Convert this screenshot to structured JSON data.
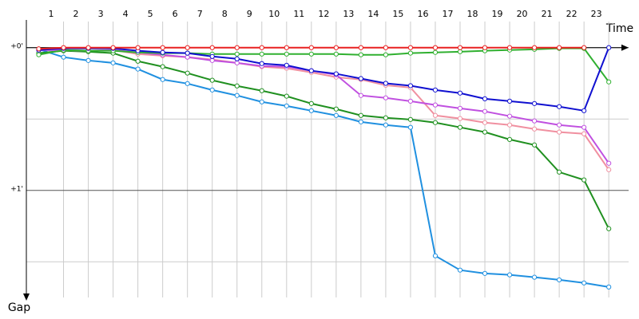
{
  "chart_data": {
    "type": "line",
    "x_label": "Time",
    "y_label": "Gap",
    "x": [
      0,
      1,
      2,
      3,
      4,
      5,
      6,
      7,
      8,
      9,
      10,
      11,
      12,
      13,
      14,
      15,
      16,
      17,
      18,
      19,
      20,
      21,
      22,
      23
    ],
    "xlim": [
      -0.5,
      23.8
    ],
    "xticks": [
      {
        "value": 1,
        "label": "1"
      },
      {
        "value": 2,
        "label": "2"
      },
      {
        "value": 3,
        "label": "3"
      },
      {
        "value": 4,
        "label": "4"
      },
      {
        "value": 5,
        "label": "5"
      },
      {
        "value": 6,
        "label": "6"
      },
      {
        "value": 7,
        "label": "7"
      },
      {
        "value": 8,
        "label": "8"
      },
      {
        "value": 9,
        "label": "9"
      },
      {
        "value": 10,
        "label": "10"
      },
      {
        "value": 11,
        "label": "11"
      },
      {
        "value": 12,
        "label": "12"
      },
      {
        "value": 13,
        "label": "13"
      },
      {
        "value": 14,
        "label": "14"
      },
      {
        "value": 15,
        "label": "15"
      },
      {
        "value": 16,
        "label": "16"
      },
      {
        "value": 17,
        "label": "17"
      },
      {
        "value": 18,
        "label": "18"
      },
      {
        "value": 19,
        "label": "19"
      },
      {
        "value": 20,
        "label": "20"
      },
      {
        "value": 21,
        "label": "21"
      },
      {
        "value": 22,
        "label": "22"
      },
      {
        "value": 23,
        "label": "23"
      }
    ],
    "ylim": [
      -15,
      105
    ],
    "yticks": [
      {
        "value": 0,
        "label": "+0'"
      },
      {
        "value": 60,
        "label": "+1'"
      }
    ],
    "minor_yticks": [
      30,
      90
    ],
    "grid": true,
    "series": [
      {
        "color": "#2090e0",
        "values": [
          0.7,
          4,
          5.4,
          6.4,
          9,
          13.4,
          15.1,
          17.8,
          20.1,
          22.8,
          24.5,
          26.5,
          28.5,
          31.2,
          32.5,
          33.5,
          87.5,
          93.5,
          94.9,
          95.5,
          96.5,
          97.6,
          98.9,
          100.6
        ]
      },
      {
        "color": "#209020",
        "values": [
          2.3,
          1.3,
          1.7,
          2.3,
          5.7,
          8,
          10.7,
          13.7,
          16.1,
          18.1,
          20.4,
          23.5,
          25.8,
          28.5,
          29.5,
          30.2,
          31.5,
          33.5,
          35.5,
          38.6,
          40.9,
          52.3,
          55.6,
          76.1
        ]
      },
      {
        "color": "#f090a0",
        "values": [
          1,
          1,
          1.3,
          1,
          2.7,
          3.4,
          4,
          5,
          6.4,
          8,
          8.7,
          10.4,
          12.4,
          13.4,
          15.8,
          16.8,
          28.5,
          29.8,
          31.5,
          32.5,
          34.2,
          35.5,
          36.2,
          51.3
        ]
      },
      {
        "color": "#c050e0",
        "values": [
          1,
          1,
          1.3,
          1,
          2,
          3,
          4,
          5.4,
          6.4,
          7.7,
          8,
          9.7,
          11.4,
          20.1,
          21.1,
          22.5,
          24.1,
          25.5,
          26.8,
          28.8,
          30.8,
          32.5,
          33.5,
          48.6
        ]
      },
      {
        "color": "#30b030",
        "values": [
          3,
          1,
          1.3,
          1.3,
          2,
          2.3,
          2.3,
          2.7,
          2.7,
          2.7,
          2.7,
          2.7,
          2.7,
          3,
          3,
          2.3,
          2,
          1.7,
          1.3,
          1,
          0.7,
          0.3,
          0.3,
          14.4
        ]
      },
      {
        "color": "#1010d0",
        "values": [
          1,
          0.3,
          0.3,
          0.3,
          1.3,
          2,
          2.3,
          3.7,
          4.7,
          6.7,
          7.4,
          9.7,
          11,
          13,
          15,
          16,
          17.8,
          19.1,
          21.5,
          22.5,
          23.5,
          24.8,
          26.5,
          0
        ]
      },
      {
        "color": "#e82020",
        "values": [
          0.5,
          0,
          0,
          0,
          0,
          0,
          0,
          0,
          0,
          0,
          0,
          0,
          0,
          0,
          0,
          0,
          0,
          0,
          0,
          0,
          0,
          0,
          0,
          null
        ]
      }
    ]
  }
}
